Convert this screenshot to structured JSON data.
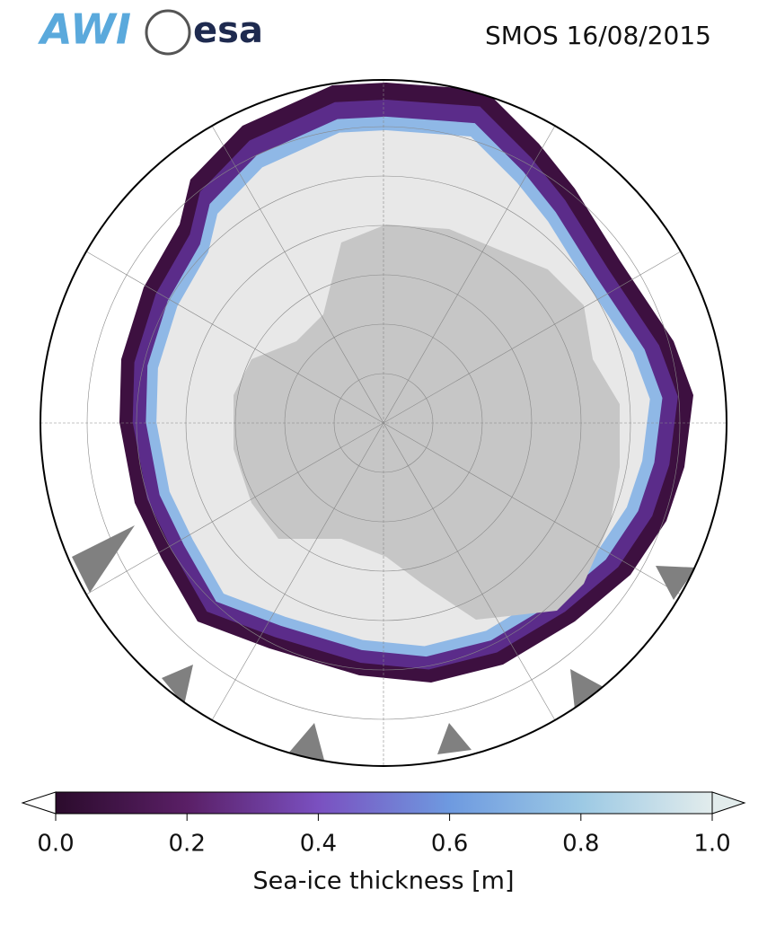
{
  "header": {
    "title": "SMOS 16/08/2015",
    "logos": [
      "AWI",
      "esa"
    ]
  },
  "colorbar": {
    "label": "Sea-ice thickness [m]",
    "lim": [
      0,
      1
    ],
    "ticks": [
      {
        "value": 0,
        "label": "0.0"
      },
      0.2,
      0.4,
      0.6,
      0.8,
      {
        "value": 1,
        "label": "1.0"
      }
    ],
    "colors": [
      "#2b0b2c",
      "#5a1f66",
      "#7a50c0",
      "#6e9ae0",
      "#9cc9e4",
      "#e2ecec"
    ]
  }
}
